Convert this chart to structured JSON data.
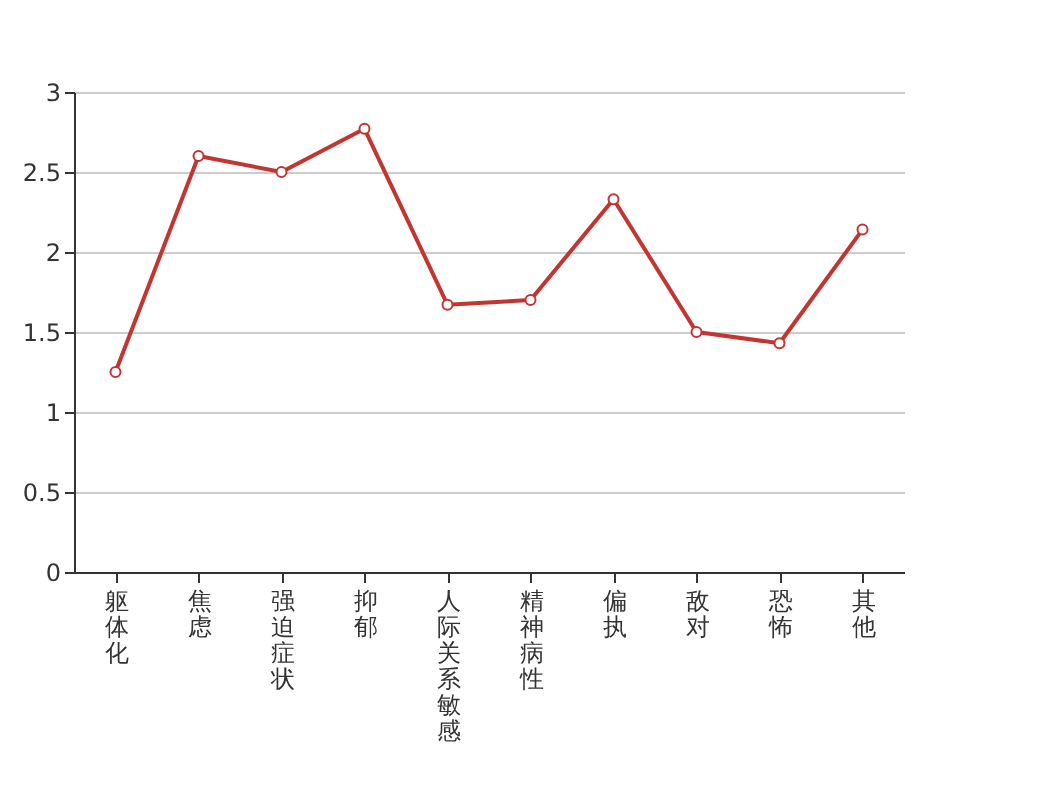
{
  "chart_data": {
    "type": "line",
    "categories": [
      "躯体化",
      "焦虑",
      "强迫症状",
      "抑郁",
      "人际关系敏感",
      "精神病性",
      "偏执",
      "敌对",
      "恐怖",
      "其他"
    ],
    "series": [
      {
        "color": "#c23531",
        "values": [
          1.25,
          2.6,
          2.5,
          2.77,
          1.67,
          1.7,
          2.33,
          1.5,
          1.43,
          2.14
        ]
      }
    ],
    "ylim": [
      0,
      3
    ],
    "yticks": [
      0,
      0.5,
      1,
      1.5,
      2,
      2.5,
      3
    ],
    "grid": "y",
    "marker": "circle",
    "line_style": "solid"
  }
}
